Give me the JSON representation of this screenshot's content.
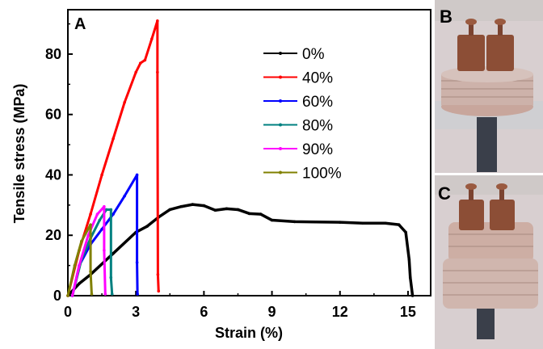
{
  "panel_labels": {
    "a": "A",
    "b": "B",
    "c": "C"
  },
  "chart_data": {
    "type": "line",
    "xlabel": "Strain (%)",
    "ylabel": "Tensile stress (MPa)",
    "xlim": [
      0,
      16
    ],
    "ylim": [
      0,
      94.7
    ],
    "xticks": [
      0,
      3,
      6,
      9,
      12,
      15
    ],
    "yticks": [
      0,
      20,
      40,
      60,
      80
    ],
    "grid": false,
    "legend": "upper-center",
    "series": [
      {
        "name": "0%",
        "color": "#000000",
        "points": [
          [
            0,
            0
          ],
          [
            0.5,
            4
          ],
          [
            1,
            7
          ],
          [
            2,
            14
          ],
          [
            3,
            21
          ],
          [
            3.5,
            23
          ],
          [
            4,
            26
          ],
          [
            4.5,
            28.5
          ],
          [
            5,
            29.5
          ],
          [
            5.5,
            30.2
          ],
          [
            6,
            29.8
          ],
          [
            6.5,
            28.3
          ],
          [
            7,
            28.8
          ],
          [
            7.5,
            28.5
          ],
          [
            8,
            27.2
          ],
          [
            8.5,
            27
          ],
          [
            9,
            25
          ],
          [
            10,
            24.5
          ],
          [
            12,
            24.3
          ],
          [
            13,
            24
          ],
          [
            14,
            24
          ],
          [
            14.6,
            23.5
          ],
          [
            14.9,
            21
          ],
          [
            15.05,
            12
          ],
          [
            15.1,
            6
          ],
          [
            15.2,
            0
          ]
        ]
      },
      {
        "name": "40%",
        "color": "#ff0000",
        "points": [
          [
            0,
            0
          ],
          [
            0.5,
            15
          ],
          [
            1,
            27
          ],
          [
            1.5,
            40
          ],
          [
            2,
            52
          ],
          [
            2.5,
            64
          ],
          [
            3,
            74
          ],
          [
            3.2,
            77
          ],
          [
            3.4,
            78
          ],
          [
            3.7,
            85
          ],
          [
            3.95,
            91
          ],
          [
            3.95,
            74
          ],
          [
            3.97,
            7
          ],
          [
            4,
            1.5
          ]
        ]
      },
      {
        "name": "60%",
        "color": "#0000ff",
        "points": [
          [
            0.2,
            0
          ],
          [
            0.5,
            10
          ],
          [
            1,
            17
          ],
          [
            1.5,
            22
          ],
          [
            2,
            27
          ],
          [
            2.5,
            33
          ],
          [
            3.05,
            40
          ],
          [
            3.05,
            11
          ],
          [
            3.07,
            0.5
          ]
        ]
      },
      {
        "name": "80%",
        "color": "#008080",
        "points": [
          [
            0.2,
            0
          ],
          [
            0.6,
            12
          ],
          [
            1,
            19
          ],
          [
            1.4,
            25
          ],
          [
            1.7,
            28.5
          ],
          [
            1.9,
            28.5
          ],
          [
            1.9,
            6
          ],
          [
            1.95,
            0.5
          ]
        ]
      },
      {
        "name": "90%",
        "color": "#ff00ff",
        "points": [
          [
            0.2,
            0
          ],
          [
            0.5,
            10
          ],
          [
            0.9,
            20
          ],
          [
            1.3,
            27
          ],
          [
            1.6,
            29.5
          ],
          [
            1.6,
            15
          ],
          [
            1.65,
            0.5
          ]
        ]
      },
      {
        "name": "100%",
        "color": "#808000",
        "points": [
          [
            0,
            0
          ],
          [
            0.3,
            10
          ],
          [
            0.6,
            18
          ],
          [
            1,
            23.5
          ],
          [
            1,
            8
          ],
          [
            1.05,
            0.5
          ]
        ]
      }
    ]
  }
}
